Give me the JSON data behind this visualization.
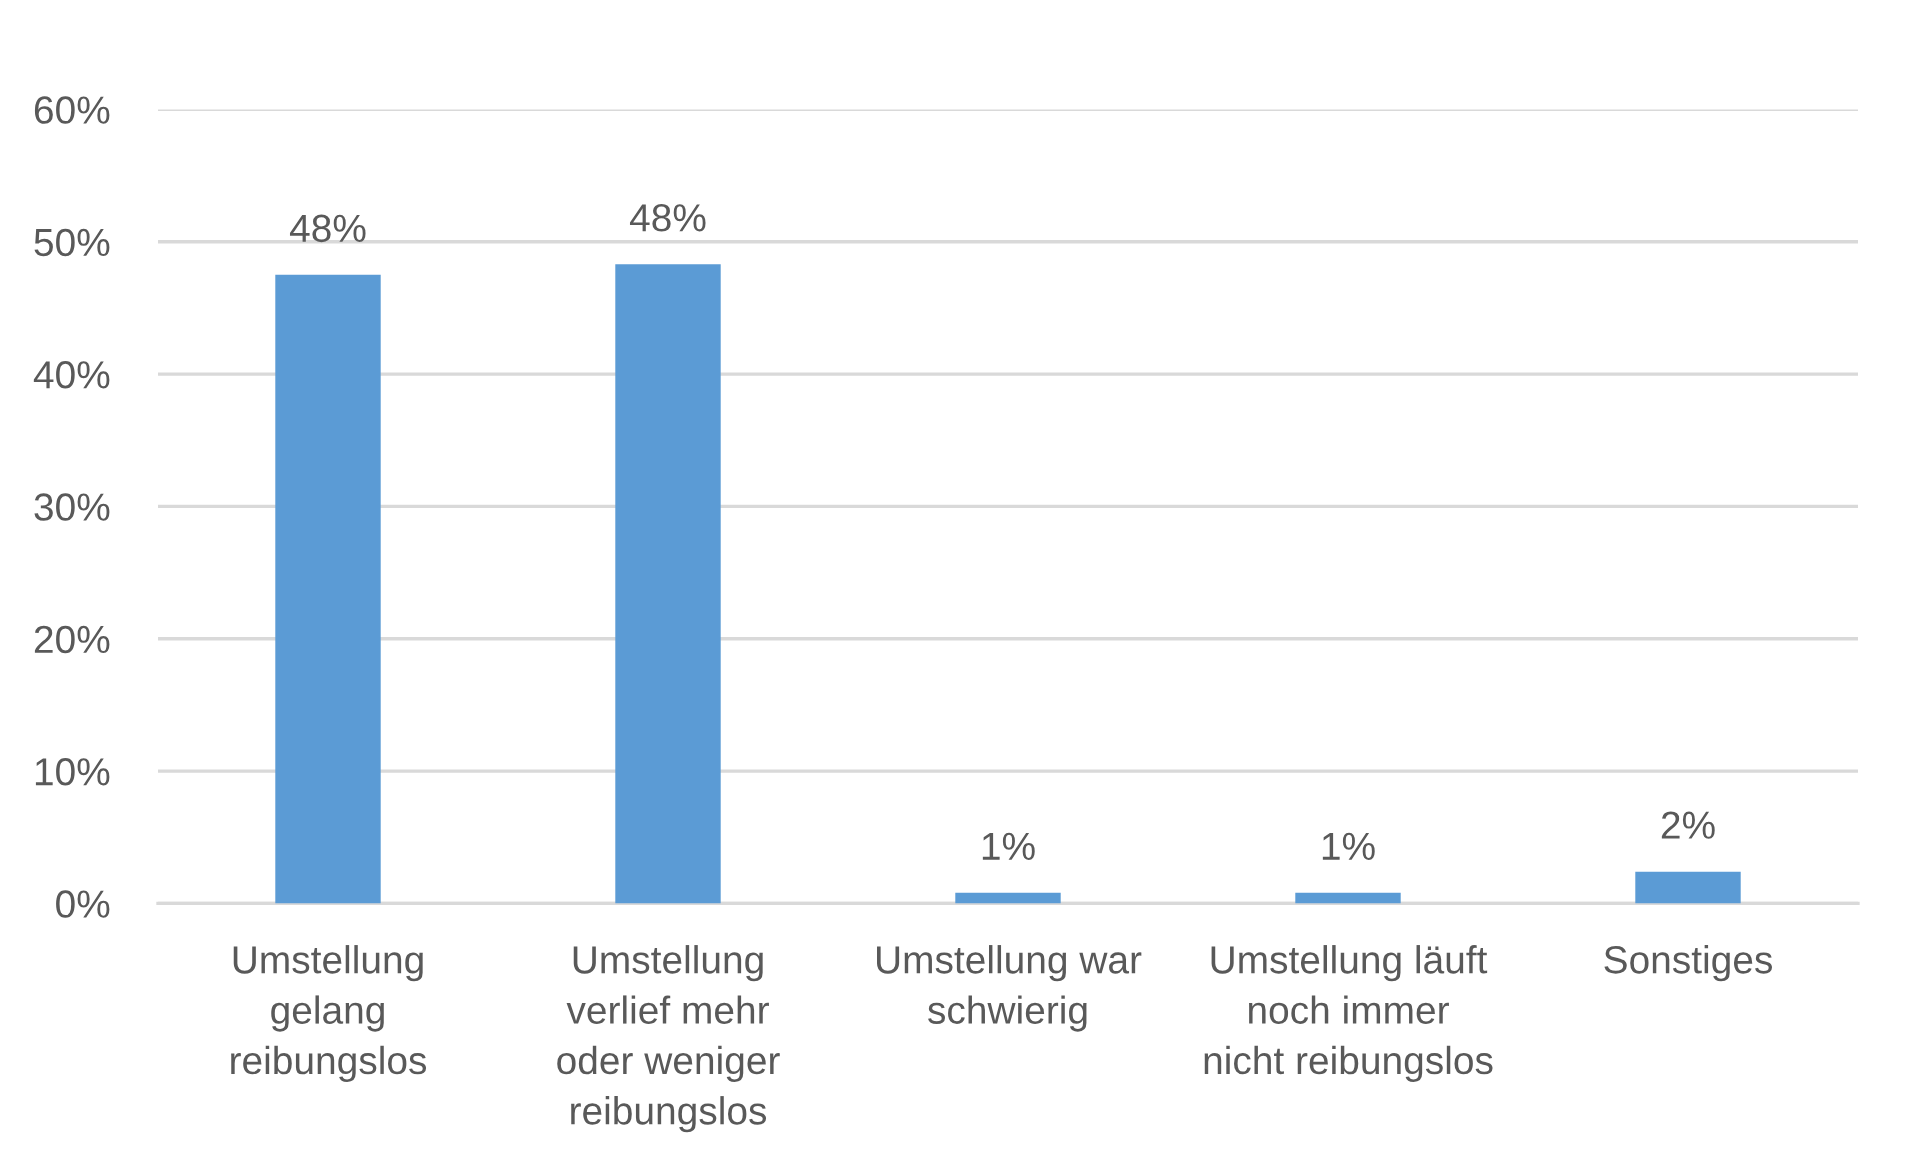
{
  "chart_data": {
    "type": "bar",
    "categories": [
      "Umstellung\ngelang\nreibungslos",
      "Umstellung\nverlief mehr\noder weniger\nreibungslos",
      "Umstellung war\nschwierig",
      "Umstellung läuft\nnoch immer\nnicht reibungslos",
      "Sonstiges"
    ],
    "values": [
      47.5,
      48.3,
      0.8,
      0.8,
      2.4
    ],
    "value_labels": [
      "48%",
      "48%",
      "1%",
      "1%",
      "2%"
    ],
    "color": "#5b9bd5",
    "ylim": [
      0,
      60
    ],
    "yticks": [
      {
        "value": 0,
        "label": "0%"
      },
      {
        "value": 10,
        "label": "10%"
      },
      {
        "value": 20,
        "label": "20%"
      },
      {
        "value": 30,
        "label": "30%"
      },
      {
        "value": 40,
        "label": "40%"
      },
      {
        "value": 50,
        "label": "50%"
      },
      {
        "value": 60,
        "label": "60%"
      }
    ],
    "grid": "y"
  }
}
